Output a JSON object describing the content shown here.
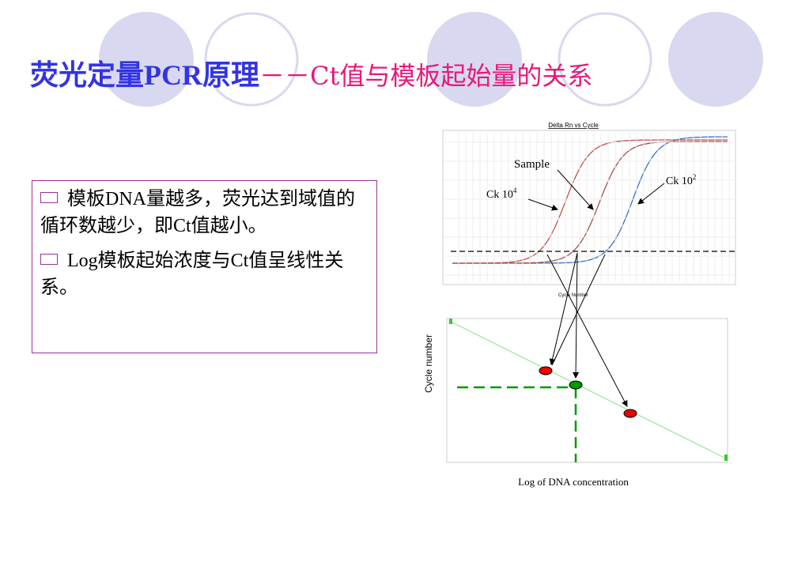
{
  "title": {
    "main": "荧光定量PCR原理",
    "sub": "－－Ct值与模板起始量的关系"
  },
  "bullets": [
    "模板DNA量越多，荧光达到域值的循环数越少，即Ct值越小。",
    "Log模板起始浓度与Ct值呈线性关系。"
  ],
  "amplification_plot": {
    "title": "Delta Rn vs Cycle",
    "x_label": "Cycle Number",
    "sample_label": "Sample",
    "ck4_label": "Ck 10",
    "ck4_exponent": "4",
    "ck2_label": "Ck 10",
    "ck2_exponent": "2"
  },
  "standard_curve": {
    "y_label": "Cycle number",
    "x_label": "Log of DNA concentration"
  }
}
